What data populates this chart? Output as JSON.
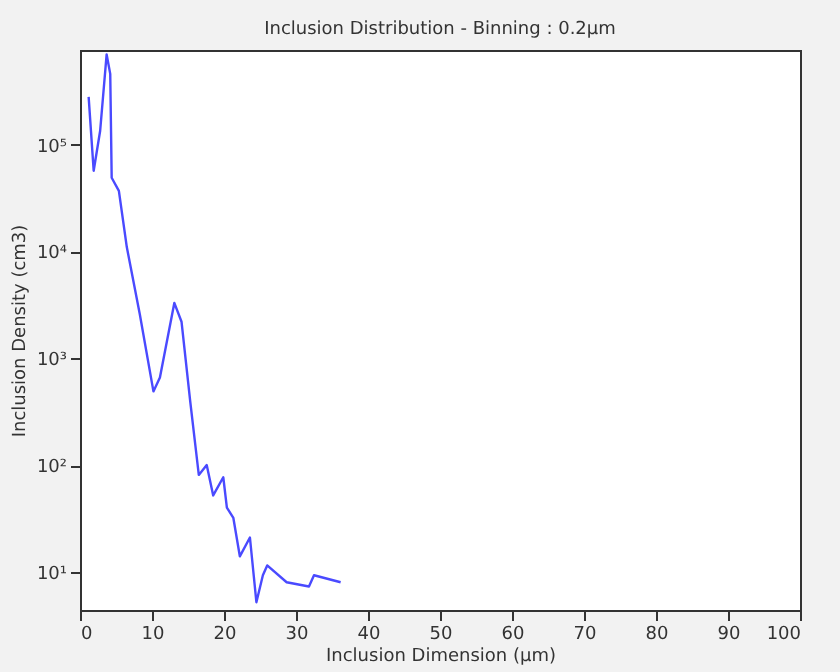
{
  "chart_data": {
    "type": "line",
    "title": "Inclusion Distribution - Binning : 0.2µm",
    "xlabel": "Inclusion Dimension (µm)",
    "ylabel": "Inclusion Density (cm3)",
    "log": "y",
    "grid": false,
    "marker": "none",
    "line_style": "solid",
    "xlim": [
      0,
      100
    ],
    "xticks": [
      0,
      10,
      20,
      30,
      40,
      50,
      60,
      70,
      80,
      90,
      100
    ],
    "ylim": [
      4.4,
      770000
    ],
    "yticks": [
      {
        "value": 10,
        "label": "10¹"
      },
      {
        "value": 100,
        "label": "10²"
      },
      {
        "value": 1000,
        "label": "10³"
      },
      {
        "value": 10000,
        "label": "10⁴"
      },
      {
        "value": 100000,
        "label": "10⁵"
      }
    ],
    "x": [
      1.2,
      1.9,
      2.8,
      3.7,
      4.2,
      4.4,
      5.4,
      6.5,
      8.3,
      10.2,
      11.1,
      13.1,
      14.1,
      15.3,
      16.5,
      17.6,
      18.5,
      19.9,
      20.4,
      21.3,
      22.2,
      23.6,
      24.5,
      25.4,
      26.0,
      28.7,
      31.8,
      32.5,
      36.2
    ],
    "series": [
      {
        "color": "#4a4aff",
        "values": [
          280000,
          57000,
          135000,
          700000,
          460000,
          49000,
          37000,
          11000,
          2600,
          490,
          660,
          3300,
          2200,
          400,
          81,
          100,
          52,
          77,
          40,
          32,
          14,
          21,
          5.2,
          9.3,
          11.5,
          8,
          7.3,
          9.3,
          8
        ]
      }
    ]
  }
}
